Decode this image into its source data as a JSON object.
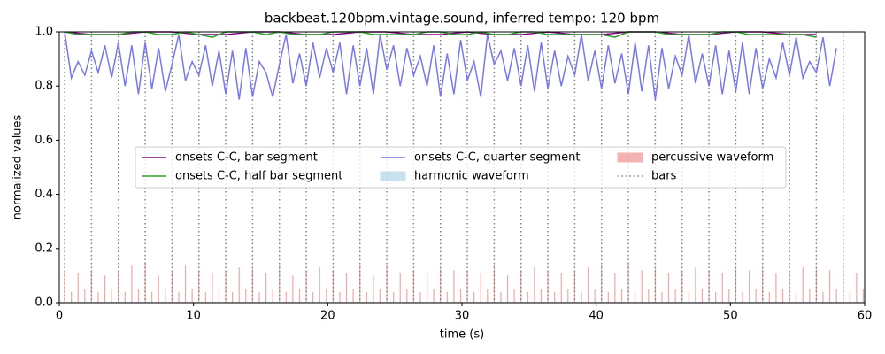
{
  "chart_data": {
    "type": "line",
    "title": "backbeat.120bpm.vintage.sound, inferred tempo: 120 bpm",
    "x_label": "time (s)",
    "y_label": "normalized values",
    "xlim": [
      0,
      60
    ],
    "ylim": [
      0,
      1
    ],
    "xticks": [
      0,
      10,
      20,
      30,
      40,
      50,
      60
    ],
    "yticks": [
      {
        "value": 0,
        "label": "0.0"
      },
      {
        "value": 0.2,
        "label": "0.2"
      },
      {
        "value": 0.4,
        "label": "0.4"
      },
      {
        "value": 0.6,
        "label": "0.6"
      },
      {
        "value": 0.8,
        "label": "0.8"
      },
      {
        "value": 1,
        "label": "1.0"
      }
    ],
    "legend": "center",
    "series": [
      {
        "name": "onsets C-C, bar segment",
        "kind": "line",
        "color": "#800080",
        "x": [
          0.4,
          2.4,
          4.4,
          6.4,
          8.4,
          10.4,
          12.4,
          14.4,
          16.4,
          18.4,
          20.4,
          22.4,
          24.4,
          26.4,
          28.4,
          30.4,
          32.4,
          34.4,
          36.4,
          38.4,
          40.4,
          42.4,
          44.4,
          46.4,
          48.4,
          50.4,
          52.4,
          54.4,
          56.4
        ],
        "values": [
          1.0,
          0.99,
          0.99,
          1.0,
          1.0,
          0.99,
          0.99,
          1.0,
          1.0,
          0.99,
          0.99,
          1.0,
          1.0,
          0.99,
          0.99,
          1.0,
          0.99,
          0.99,
          1.0,
          0.99,
          0.99,
          1.0,
          1.0,
          0.99,
          0.99,
          1.0,
          1.0,
          0.99,
          0.99
        ]
      },
      {
        "name": "onsets C-C, half bar segment",
        "kind": "line",
        "color": "#2ca02c",
        "x": [
          0.4,
          1.4,
          2.4,
          3.4,
          4.4,
          5.4,
          6.4,
          7.4,
          8.4,
          9.4,
          10.4,
          11.4,
          12.4,
          13.4,
          14.4,
          15.4,
          16.4,
          17.4,
          18.4,
          19.4,
          20.4,
          21.4,
          22.4,
          23.4,
          24.4,
          25.4,
          26.4,
          27.4,
          28.4,
          29.4,
          30.4,
          31.4,
          32.4,
          33.4,
          34.4,
          35.4,
          36.4,
          37.4,
          38.4,
          39.4,
          40.4,
          41.4,
          42.4,
          43.4,
          44.4,
          45.4,
          46.4,
          47.4,
          48.4,
          49.4,
          50.4,
          51.4,
          52.4,
          53.4,
          54.4,
          55.4,
          56.4
        ],
        "values": [
          1.0,
          0.99,
          0.99,
          0.99,
          0.99,
          1.0,
          1.0,
          0.99,
          0.99,
          1.0,
          0.99,
          0.98,
          1.0,
          1.0,
          1.0,
          0.99,
          1.0,
          0.99,
          0.99,
          0.99,
          1.0,
          1.0,
          1.0,
          0.99,
          0.99,
          0.99,
          0.99,
          1.0,
          1.0,
          0.99,
          0.99,
          1.0,
          0.99,
          0.99,
          1.0,
          1.0,
          0.99,
          0.99,
          0.99,
          0.99,
          0.99,
          0.98,
          1.0,
          1.0,
          1.0,
          0.99,
          0.99,
          0.99,
          0.99,
          1.0,
          1.0,
          0.99,
          0.99,
          0.99,
          0.99,
          0.99,
          0.98
        ]
      },
      {
        "name": "onsets C-C, quarter segment",
        "kind": "line",
        "color": "#7777f0",
        "x": [
          0.4,
          0.9,
          1.4,
          1.9,
          2.4,
          2.9,
          3.4,
          3.9,
          4.4,
          4.9,
          5.4,
          5.9,
          6.4,
          6.9,
          7.4,
          7.9,
          8.4,
          8.9,
          9.4,
          9.9,
          10.4,
          10.9,
          11.4,
          11.9,
          12.4,
          12.9,
          13.4,
          13.9,
          14.4,
          14.9,
          15.4,
          15.9,
          16.4,
          16.9,
          17.4,
          17.9,
          18.4,
          18.9,
          19.4,
          19.9,
          20.4,
          20.9,
          21.4,
          21.9,
          22.4,
          22.9,
          23.4,
          23.9,
          24.4,
          24.9,
          25.4,
          25.9,
          26.4,
          26.9,
          27.4,
          27.9,
          28.4,
          28.9,
          29.4,
          29.9,
          30.4,
          30.9,
          31.4,
          31.9,
          32.4,
          32.9,
          33.4,
          33.9,
          34.4,
          34.9,
          35.4,
          35.9,
          36.4,
          36.9,
          37.4,
          37.9,
          38.4,
          38.9,
          39.4,
          39.9,
          40.4,
          40.9,
          41.4,
          41.9,
          42.4,
          42.9,
          43.4,
          43.9,
          44.4,
          44.9,
          45.4,
          45.9,
          46.4,
          46.9,
          47.4,
          47.9,
          48.4,
          48.9,
          49.4,
          49.9,
          50.4,
          50.9,
          51.4,
          51.9,
          52.4,
          52.9,
          53.4,
          53.9,
          54.4,
          54.9,
          55.4,
          55.9,
          56.4,
          56.9,
          57.4,
          57.9
        ],
        "values": [
          1.0,
          0.83,
          0.89,
          0.84,
          0.93,
          0.85,
          0.95,
          0.83,
          0.96,
          0.8,
          0.95,
          0.77,
          0.96,
          0.79,
          0.94,
          0.78,
          0.88,
          0.99,
          0.82,
          0.89,
          0.84,
          0.95,
          0.8,
          0.93,
          0.77,
          0.93,
          0.75,
          0.94,
          0.76,
          0.89,
          0.85,
          0.76,
          0.88,
          0.99,
          0.81,
          0.92,
          0.8,
          0.96,
          0.83,
          0.94,
          0.85,
          0.96,
          0.77,
          0.95,
          0.8,
          0.94,
          0.77,
          0.99,
          0.86,
          0.95,
          0.8,
          0.94,
          0.84,
          0.91,
          0.8,
          0.95,
          0.76,
          0.92,
          0.77,
          0.97,
          0.82,
          0.89,
          0.76,
          0.99,
          0.88,
          0.93,
          0.82,
          0.94,
          0.8,
          0.95,
          0.78,
          0.96,
          0.79,
          0.93,
          0.8,
          0.91,
          0.84,
          0.99,
          0.82,
          0.93,
          0.79,
          0.95,
          0.81,
          0.92,
          0.77,
          0.96,
          0.78,
          0.95,
          0.75,
          0.94,
          0.79,
          0.91,
          0.84,
          0.99,
          0.81,
          0.92,
          0.8,
          0.95,
          0.77,
          0.93,
          0.78,
          0.96,
          0.77,
          0.94,
          0.79,
          0.9,
          0.83,
          0.96,
          0.84,
          0.98,
          0.83,
          0.89,
          0.85,
          0.98,
          0.8,
          0.94
        ]
      },
      {
        "name": "harmonic waveform",
        "kind": "area",
        "color": "#a6cde8",
        "x": [
          0,
          60
        ],
        "values": [
          0.003,
          0.003
        ]
      },
      {
        "name": "percussive waveform",
        "kind": "spikes",
        "color": "#f08080",
        "x": [
          0.4,
          0.9,
          1.4,
          1.9,
          2.4,
          2.9,
          3.4,
          3.9,
          4.4,
          4.9,
          5.4,
          5.9,
          6.4,
          6.9,
          7.4,
          7.9,
          8.4,
          8.9,
          9.4,
          9.9,
          10.4,
          10.9,
          11.4,
          11.9,
          12.4,
          12.9,
          13.4,
          13.9,
          14.4,
          14.9,
          15.4,
          15.9,
          16.4,
          16.9,
          17.4,
          17.9,
          18.4,
          18.9,
          19.4,
          19.9,
          20.4,
          20.9,
          21.4,
          21.9,
          22.4,
          22.9,
          23.4,
          23.9,
          24.4,
          24.9,
          25.4,
          25.9,
          26.4,
          26.9,
          27.4,
          27.9,
          28.4,
          28.9,
          29.4,
          29.9,
          30.4,
          30.9,
          31.4,
          31.9,
          32.4,
          32.9,
          33.4,
          33.9,
          34.4,
          34.9,
          35.4,
          35.9,
          36.4,
          36.9,
          37.4,
          37.9,
          38.4,
          38.9,
          39.4,
          39.9,
          40.4,
          40.9,
          41.4,
          41.9,
          42.4,
          42.9,
          43.4,
          43.9,
          44.4,
          44.9,
          45.4,
          45.9,
          46.4,
          46.9,
          47.4,
          47.9,
          48.4,
          48.9,
          49.4,
          49.9,
          50.4,
          50.9,
          51.4,
          51.9,
          52.4,
          52.9,
          53.4,
          53.9,
          54.4,
          54.9,
          55.4,
          55.9,
          56.4,
          56.9,
          57.4,
          57.9,
          58.4,
          58.9,
          59.4,
          59.9
        ],
        "values": [
          0.12,
          0.04,
          0.11,
          0.05,
          0.12,
          0.04,
          0.1,
          0.05,
          0.12,
          0.04,
          0.14,
          0.05,
          0.15,
          0.04,
          0.1,
          0.05,
          0.12,
          0.04,
          0.14,
          0.05,
          0.12,
          0.04,
          0.11,
          0.05,
          0.12,
          0.04,
          0.13,
          0.05,
          0.13,
          0.04,
          0.11,
          0.05,
          0.14,
          0.04,
          0.1,
          0.05,
          0.12,
          0.04,
          0.13,
          0.05,
          0.12,
          0.04,
          0.11,
          0.05,
          0.14,
          0.04,
          0.1,
          0.05,
          0.14,
          0.04,
          0.11,
          0.05,
          0.12,
          0.04,
          0.11,
          0.05,
          0.13,
          0.04,
          0.12,
          0.05,
          0.12,
          0.04,
          0.11,
          0.05,
          0.14,
          0.04,
          0.1,
          0.05,
          0.12,
          0.04,
          0.13,
          0.05,
          0.12,
          0.04,
          0.11,
          0.05,
          0.12,
          0.04,
          0.13,
          0.05,
          0.14,
          0.04,
          0.11,
          0.05,
          0.15,
          0.04,
          0.12,
          0.05,
          0.13,
          0.04,
          0.11,
          0.05,
          0.12,
          0.04,
          0.13,
          0.05,
          0.12,
          0.04,
          0.11,
          0.05,
          0.13,
          0.04,
          0.12,
          0.05,
          0.13,
          0.04,
          0.11,
          0.05,
          0.12,
          0.04,
          0.13,
          0.05,
          0.13,
          0.04,
          0.12,
          0.05,
          0.14,
          0.04,
          0.11,
          0.05
        ]
      },
      {
        "name": "bars",
        "kind": "vlines",
        "color": "#808080",
        "x": [
          0.4,
          2.4,
          4.4,
          6.4,
          8.4,
          10.4,
          12.4,
          14.4,
          16.4,
          18.4,
          20.4,
          22.4,
          24.4,
          26.4,
          28.4,
          30.4,
          32.4,
          34.4,
          36.4,
          38.4,
          40.4,
          42.4,
          44.4,
          46.4,
          48.4,
          50.4,
          52.4,
          54.4,
          56.4,
          58.4
        ]
      }
    ]
  }
}
